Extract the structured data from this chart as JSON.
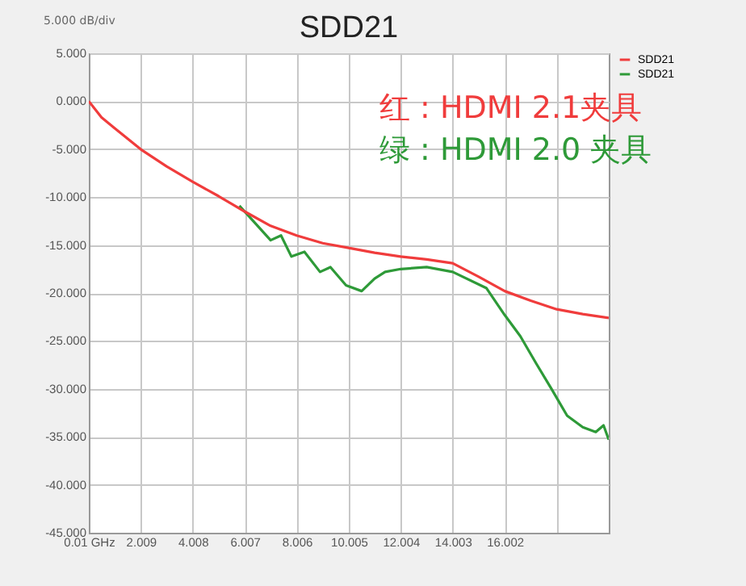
{
  "chart_data": {
    "type": "line",
    "title": "SDD21",
    "annotations": [
      "5.000 dB/div",
      "红 : HDMI 2.1夹具",
      "绿 : HDMI 2.0 夹具"
    ],
    "xlim": [
      0.01,
      20.0
    ],
    "xticks": [
      {
        "value": 0.01,
        "label": "0.01 GHz"
      },
      2.009,
      4.008,
      6.007,
      8.006,
      10.005,
      12.004,
      14.003,
      16.002,
      {
        "value": 18.001,
        "label": null
      }
    ],
    "ylim": [
      -45,
      5
    ],
    "yticks": [
      {
        "value": 5,
        "label": "5.000"
      },
      {
        "value": 0,
        "label": "0.000"
      },
      {
        "value": -5,
        "label": "-5.000"
      },
      {
        "value": -10,
        "label": "-10.000"
      },
      {
        "value": -15,
        "label": "-15.000"
      },
      {
        "value": -20,
        "label": "-20.000"
      },
      {
        "value": -25,
        "label": "-25.000"
      },
      {
        "value": -30,
        "label": "-30.000"
      },
      {
        "value": -35,
        "label": "-35.000"
      },
      {
        "value": -40,
        "label": "-40.000"
      },
      {
        "value": -45,
        "label": "-45.000"
      }
    ],
    "series": [
      {
        "name": "SDD21",
        "color": "#f03c3c",
        "x": [
          0.01,
          0.5,
          1,
          2,
          3,
          4,
          5,
          6,
          7,
          8,
          9,
          10,
          11,
          12,
          13,
          14,
          15,
          16,
          17,
          18,
          19,
          20
        ],
        "values": [
          0,
          -1.7,
          -2.8,
          -5,
          -6.8,
          -8.4,
          -9.9,
          -11.5,
          -13,
          -14,
          -14.8,
          -15.3,
          -15.8,
          -16.2,
          -16.5,
          -16.9,
          -18.3,
          -19.8,
          -20.8,
          -21.7,
          -22.2,
          -22.6
        ]
      },
      {
        "name": "SDD21",
        "color": "#2e9a38",
        "x": [
          5.8,
          6.6,
          7.0,
          7.4,
          7.8,
          8.3,
          8.9,
          9.3,
          9.9,
          10.5,
          11,
          11.4,
          12,
          13,
          14,
          15.3,
          16,
          16.6,
          17.2,
          17.8,
          18.4,
          19,
          19.5,
          19.8,
          20
        ],
        "values": [
          -10.9,
          -13.3,
          -14.5,
          -14,
          -16.2,
          -15.7,
          -17.8,
          -17.3,
          -19.2,
          -19.8,
          -18.5,
          -17.8,
          -17.5,
          -17.3,
          -17.8,
          -19.5,
          -22.3,
          -24.5,
          -27.3,
          -30,
          -32.8,
          -34,
          -34.5,
          -33.8,
          -35.3
        ]
      }
    ],
    "grid": true,
    "legend": "top right",
    "marker": "none",
    "line_style": "solid"
  }
}
